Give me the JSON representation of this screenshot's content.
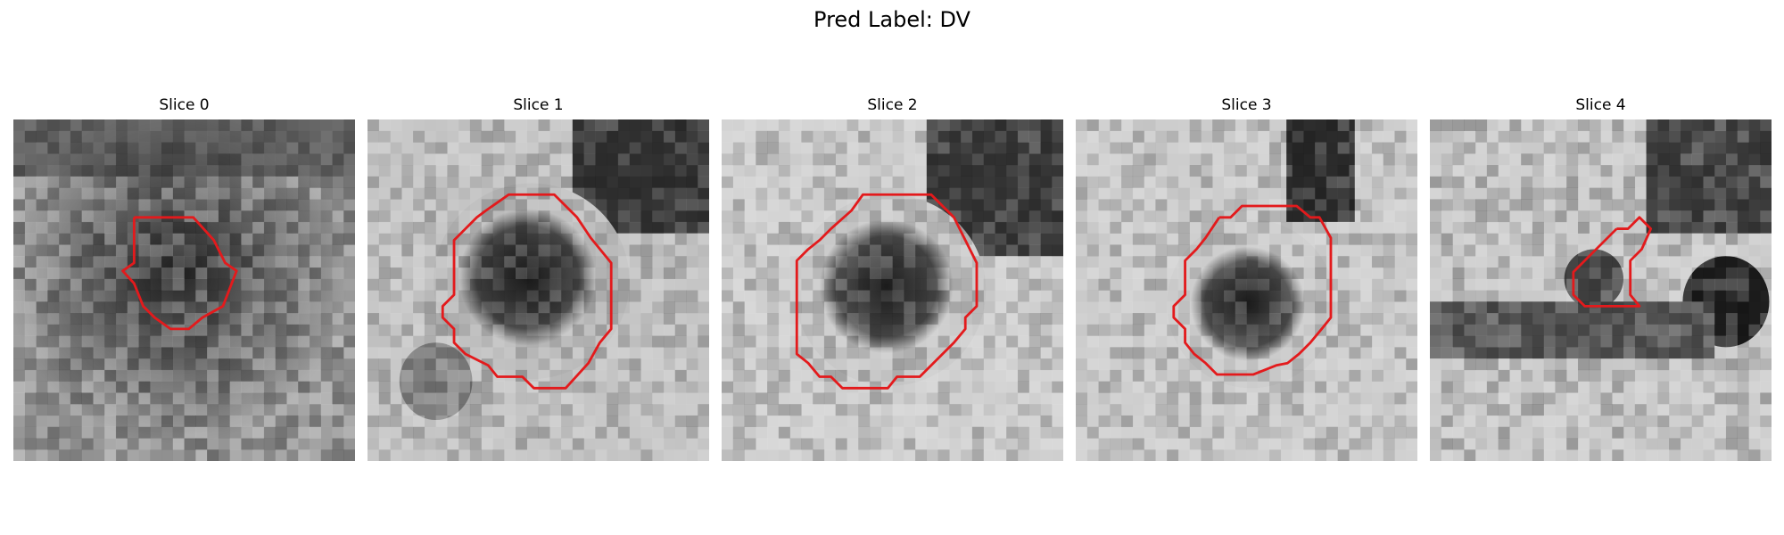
{
  "figure": {
    "title": "Pred Label: DV"
  },
  "panels": [
    {
      "title": "Slice 0"
    },
    {
      "title": "Slice 1"
    },
    {
      "title": "Slice 2"
    },
    {
      "title": "Slice 3"
    },
    {
      "title": "Slice 4"
    }
  ],
  "colors": {
    "contour": "#e31a1c",
    "background": "#ffffff"
  }
}
